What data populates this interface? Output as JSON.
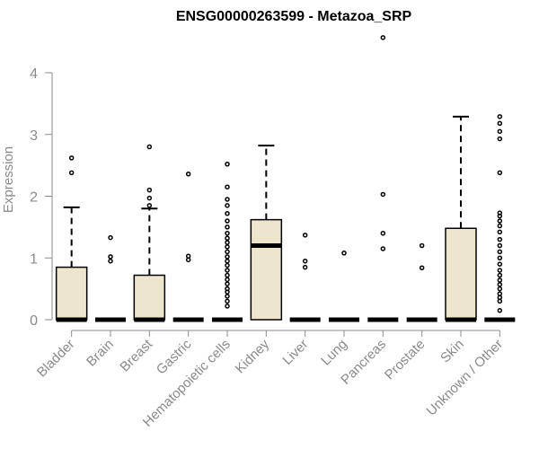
{
  "chart_data": {
    "type": "box",
    "title": "ENSG00000263599 - Metazoa_SRP",
    "xlabel": "",
    "ylabel": "Expression",
    "ylim": [
      0,
      4.5
    ],
    "yticks": [
      "0",
      "1",
      "2",
      "3",
      "4"
    ],
    "box_fill": "#ede6cc",
    "categories": [
      "Bladder",
      "Brain",
      "Breast",
      "Gastric",
      "Hematopoietic cells",
      "Kidney",
      "Liver",
      "Lung",
      "Pancreas",
      "Prostate",
      "Skin",
      "Unknown / Other"
    ],
    "boxes": [
      {
        "q1": 0,
        "median": 0,
        "q3": 0.85,
        "whisker_low": 0,
        "whisker_high": 1.82,
        "outliers": [
          2.38,
          2.62
        ]
      },
      {
        "q1": 0,
        "median": 0,
        "q3": 0,
        "whisker_low": 0,
        "whisker_high": 0,
        "outliers": [
          0.95,
          1.02,
          1.33
        ]
      },
      {
        "q1": 0,
        "median": 0,
        "q3": 0.72,
        "whisker_low": 0,
        "whisker_high": 1.8,
        "outliers": [
          1.85,
          1.97,
          2.1,
          2.8
        ]
      },
      {
        "q1": 0,
        "median": 0,
        "q3": 0,
        "whisker_low": 0,
        "whisker_high": 0,
        "outliers": [
          0.97,
          1.03,
          2.36
        ]
      },
      {
        "q1": 0,
        "median": 0,
        "q3": 0,
        "whisker_low": 0,
        "whisker_high": 0,
        "outliers": [
          0.22,
          0.3,
          0.38,
          0.45,
          0.5,
          0.58,
          0.65,
          0.72,
          0.8,
          0.88,
          0.95,
          1.02,
          1.1,
          1.18,
          1.25,
          1.32,
          1.4,
          1.5,
          1.6,
          1.72,
          1.85,
          1.95,
          2.15,
          2.52
        ]
      },
      {
        "q1": 0,
        "median": 1.2,
        "q3": 1.62,
        "whisker_low": 0,
        "whisker_high": 2.82,
        "outliers": []
      },
      {
        "q1": 0,
        "median": 0,
        "q3": 0,
        "whisker_low": 0,
        "whisker_high": 0,
        "outliers": [
          0.85,
          0.95,
          1.37
        ]
      },
      {
        "q1": 0,
        "median": 0,
        "q3": 0,
        "whisker_low": 0,
        "whisker_high": 0,
        "outliers": [
          1.08
        ]
      },
      {
        "q1": 0,
        "median": 0,
        "q3": 0,
        "whisker_low": 0,
        "whisker_high": 0,
        "outliers": [
          1.15,
          1.4,
          2.03,
          4.57
        ]
      },
      {
        "q1": 0,
        "median": 0,
        "q3": 0,
        "whisker_low": 0,
        "whisker_high": 0,
        "outliers": [
          0.84,
          1.2
        ]
      },
      {
        "q1": 0,
        "median": 0,
        "q3": 1.48,
        "whisker_low": 0,
        "whisker_high": 3.29,
        "outliers": []
      },
      {
        "q1": 0,
        "median": 0,
        "q3": 0,
        "whisker_low": 0,
        "whisker_high": 0,
        "outliers": [
          0.15,
          0.3,
          0.36,
          0.42,
          0.5,
          0.57,
          0.64,
          0.72,
          0.8,
          0.9,
          1.0,
          1.1,
          1.2,
          1.3,
          1.42,
          1.52,
          1.6,
          1.68,
          1.73,
          2.38,
          2.93,
          3.05,
          3.18,
          3.29
        ]
      }
    ]
  }
}
